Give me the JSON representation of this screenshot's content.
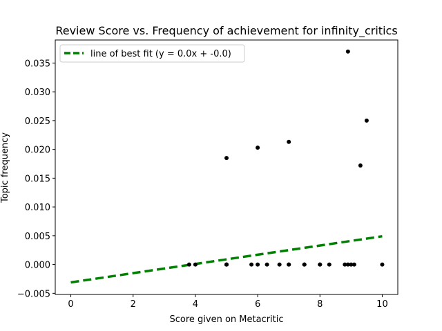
{
  "chart_data": {
    "type": "scatter",
    "title": "Review Score vs. Frequency of achievement for infinity_critics",
    "xlabel": "Score given on Metacritic",
    "ylabel": "Topic frequency",
    "xlim": [
      -0.5,
      10.5
    ],
    "ylim": [
      -0.0052,
      0.039
    ],
    "xticks": [
      0,
      2,
      4,
      6,
      8,
      10
    ],
    "xtick_labels": [
      "0",
      "2",
      "4",
      "6",
      "8",
      "10"
    ],
    "yticks": [
      -0.005,
      0.0,
      0.005,
      0.01,
      0.015,
      0.02,
      0.025,
      0.03,
      0.035
    ],
    "ytick_labels": [
      "−0.005",
      "0.000",
      "0.005",
      "0.010",
      "0.015",
      "0.020",
      "0.025",
      "0.030",
      "0.035"
    ],
    "grid": false,
    "legend_position": "top-left",
    "points": [
      {
        "x": 3.8,
        "y": 0.0
      },
      {
        "x": 4.0,
        "y": 0.0
      },
      {
        "x": 5.0,
        "y": 0.0
      },
      {
        "x": 5.0,
        "y": 0.0
      },
      {
        "x": 5.0,
        "y": 0.0
      },
      {
        "x": 5.0,
        "y": 0.0185
      },
      {
        "x": 5.8,
        "y": 0.0
      },
      {
        "x": 6.0,
        "y": 0.0
      },
      {
        "x": 6.0,
        "y": 0.0203
      },
      {
        "x": 6.3,
        "y": 0.0
      },
      {
        "x": 6.7,
        "y": 0.0
      },
      {
        "x": 7.0,
        "y": 0.0
      },
      {
        "x": 7.0,
        "y": 0.0
      },
      {
        "x": 7.0,
        "y": 0.0213
      },
      {
        "x": 7.5,
        "y": 0.0
      },
      {
        "x": 7.5,
        "y": 0.0
      },
      {
        "x": 8.0,
        "y": 0.0
      },
      {
        "x": 8.0,
        "y": 0.0
      },
      {
        "x": 8.3,
        "y": 0.0
      },
      {
        "x": 8.8,
        "y": 0.0
      },
      {
        "x": 8.9,
        "y": 0.0
      },
      {
        "x": 8.9,
        "y": 0.037
      },
      {
        "x": 9.0,
        "y": 0.0
      },
      {
        "x": 9.1,
        "y": 0.0
      },
      {
        "x": 9.3,
        "y": 0.0172
      },
      {
        "x": 9.5,
        "y": 0.025
      },
      {
        "x": 10.0,
        "y": 0.0
      }
    ],
    "series": [
      {
        "name": "line of best fit (y = 0.0x + -0.0)",
        "type": "line",
        "style": "dashed",
        "color": "#008000",
        "x": [
          0,
          10
        ],
        "y": [
          -0.0031,
          0.0049
        ]
      }
    ],
    "point_color": "#000000"
  }
}
